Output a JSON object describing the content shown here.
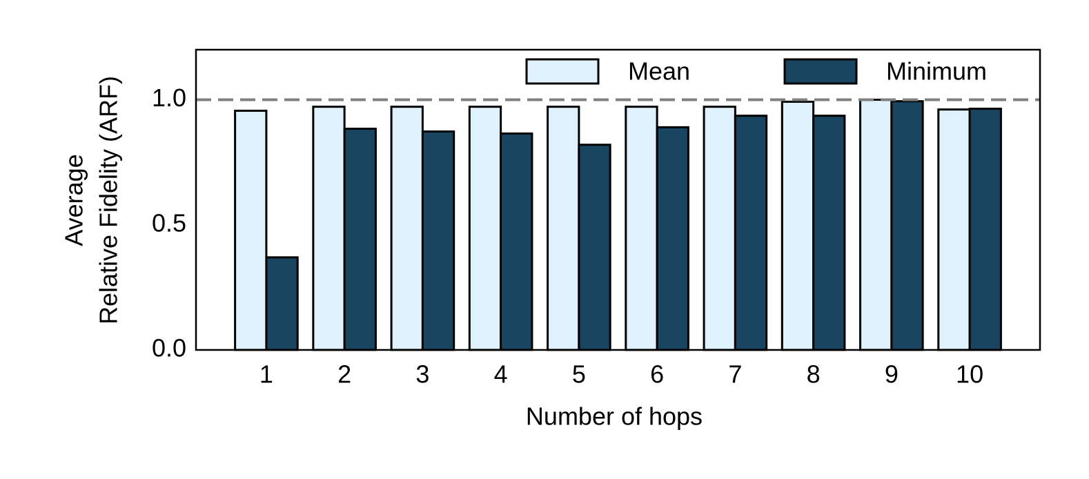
{
  "chart_data": {
    "type": "bar",
    "xlabel": "Number of hops",
    "ylabel": [
      "Average",
      "Relative Fidelity (ARF)"
    ],
    "categories": [
      "1",
      "2",
      "3",
      "4",
      "5",
      "6",
      "7",
      "8",
      "9",
      "10"
    ],
    "series": [
      {
        "name": "Mean",
        "color": "#dff1fc",
        "values": [
          0.956,
          0.972,
          0.972,
          0.972,
          0.972,
          0.972,
          0.972,
          0.992,
          1.0,
          0.961
        ]
      },
      {
        "name": "Minimum",
        "color": "#1a4560",
        "values": [
          0.37,
          0.884,
          0.873,
          0.865,
          0.82,
          0.89,
          0.936,
          0.936,
          0.994,
          0.964
        ]
      }
    ],
    "ylim": [
      0,
      1.2
    ],
    "yticks": [
      {
        "value": 0,
        "label": "0.0"
      },
      {
        "value": 0.5,
        "label": "0.5"
      },
      {
        "value": 1.0,
        "label": "1.0"
      }
    ],
    "hline": 1.0,
    "hline_color": "#808080",
    "legend": "upper right",
    "grid": false
  }
}
